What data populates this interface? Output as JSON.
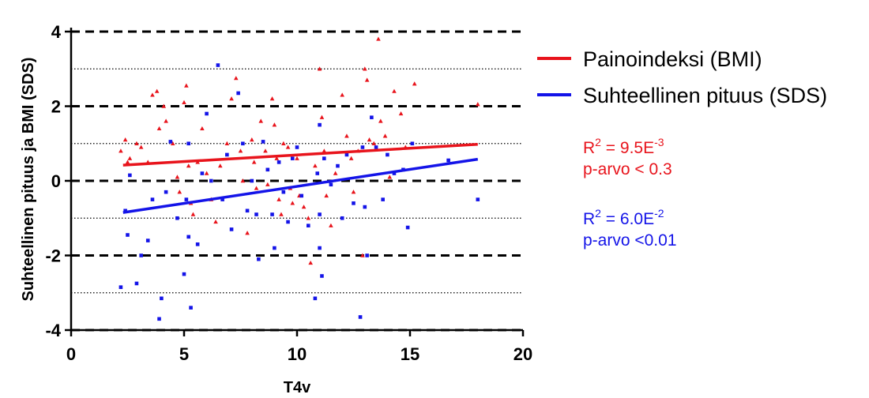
{
  "chart_data": {
    "type": "scatter",
    "title": "",
    "xlabel": "T4v",
    "ylabel": "Suhteellinen pituus ja BMI (SDS)",
    "xlim": [
      0,
      20
    ],
    "ylim": [
      -4,
      4
    ],
    "x_ticks": [
      "0",
      "5",
      "10",
      "15",
      "20"
    ],
    "y_ticks": [
      "-4",
      "-2",
      "0",
      "2",
      "4"
    ],
    "major_gridlines_y": [
      -4,
      -2,
      0,
      2,
      4
    ],
    "minor_gridlines_y": [
      -3,
      -1,
      1,
      3
    ],
    "legend_position": "top-right",
    "series": [
      {
        "name": "Painoindeksi (BMI)",
        "color": "#e8141c",
        "marker": "triangle",
        "trend": {
          "x": [
            2.3,
            18.0
          ],
          "y": [
            0.42,
            0.98
          ]
        },
        "points": [
          [
            2.2,
            0.8
          ],
          [
            2.4,
            1.1
          ],
          [
            2.5,
            0.5
          ],
          [
            2.6,
            0.6
          ],
          [
            2.9,
            1.0
          ],
          [
            3.1,
            0.9
          ],
          [
            3.4,
            0.5
          ],
          [
            3.6,
            2.3
          ],
          [
            3.8,
            2.4
          ],
          [
            3.9,
            1.4
          ],
          [
            4.1,
            2.0
          ],
          [
            4.2,
            1.6
          ],
          [
            4.5,
            1.0
          ],
          [
            4.7,
            0.1
          ],
          [
            4.8,
            -0.3
          ],
          [
            5.0,
            2.1
          ],
          [
            5.1,
            2.55
          ],
          [
            5.2,
            0.4
          ],
          [
            5.3,
            -0.6
          ],
          [
            5.4,
            -0.9
          ],
          [
            5.6,
            0.5
          ],
          [
            5.8,
            1.4
          ],
          [
            6.0,
            0.2
          ],
          [
            6.2,
            -0.5
          ],
          [
            6.4,
            -1.1
          ],
          [
            6.6,
            0.4
          ],
          [
            6.9,
            1.0
          ],
          [
            7.1,
            2.2
          ],
          [
            7.3,
            2.75
          ],
          [
            7.5,
            0.8
          ],
          [
            7.6,
            0.0
          ],
          [
            7.8,
            -1.4
          ],
          [
            8.0,
            1.1
          ],
          [
            8.1,
            0.5
          ],
          [
            8.2,
            -0.2
          ],
          [
            8.4,
            1.6
          ],
          [
            8.6,
            0.8
          ],
          [
            8.7,
            -0.1
          ],
          [
            8.9,
            2.2
          ],
          [
            9.0,
            1.5
          ],
          [
            9.1,
            0.6
          ],
          [
            9.2,
            -0.5
          ],
          [
            9.3,
            -0.9
          ],
          [
            9.4,
            1.0
          ],
          [
            9.6,
            0.9
          ],
          [
            9.7,
            -0.2
          ],
          [
            9.8,
            -0.6
          ],
          [
            10.0,
            0.6
          ],
          [
            10.1,
            -0.4
          ],
          [
            10.3,
            -0.7
          ],
          [
            10.5,
            -1.0
          ],
          [
            10.6,
            -2.2
          ],
          [
            10.8,
            0.4
          ],
          [
            11.0,
            3.0
          ],
          [
            11.1,
            1.7
          ],
          [
            11.2,
            0.8
          ],
          [
            11.3,
            -0.4
          ],
          [
            11.5,
            -1.2
          ],
          [
            11.7,
            0.2
          ],
          [
            12.0,
            2.3
          ],
          [
            12.2,
            1.2
          ],
          [
            12.4,
            0.6
          ],
          [
            12.5,
            -0.3
          ],
          [
            12.7,
            0.8
          ],
          [
            12.9,
            -2.0
          ],
          [
            13.0,
            3.0
          ],
          [
            13.1,
            2.7
          ],
          [
            13.2,
            1.1
          ],
          [
            13.4,
            1.0
          ],
          [
            13.6,
            3.8
          ],
          [
            13.7,
            1.6
          ],
          [
            13.9,
            1.2
          ],
          [
            14.1,
            0.1
          ],
          [
            14.3,
            2.4
          ],
          [
            14.6,
            1.8
          ],
          [
            14.8,
            0.9
          ],
          [
            15.2,
            2.6
          ],
          [
            18.0,
            2.05
          ]
        ]
      },
      {
        "name": "Suhteellinen pituus (SDS)",
        "color": "#1414e8",
        "marker": "square",
        "trend": {
          "x": [
            2.3,
            18.0
          ],
          "y": [
            -0.85,
            0.58
          ]
        },
        "points": [
          [
            2.2,
            -2.85
          ],
          [
            2.4,
            -0.8
          ],
          [
            2.5,
            -1.45
          ],
          [
            2.6,
            0.15
          ],
          [
            2.9,
            -2.75
          ],
          [
            3.1,
            -2.0
          ],
          [
            3.4,
            -1.6
          ],
          [
            3.6,
            -0.5
          ],
          [
            3.9,
            -3.7
          ],
          [
            4.0,
            -3.15
          ],
          [
            4.2,
            -0.3
          ],
          [
            4.4,
            1.05
          ],
          [
            4.7,
            -1.0
          ],
          [
            5.0,
            -2.5
          ],
          [
            5.1,
            -0.5
          ],
          [
            5.2,
            1.0
          ],
          [
            5.2,
            -1.5
          ],
          [
            5.3,
            -3.4
          ],
          [
            5.6,
            -1.7
          ],
          [
            5.8,
            0.2
          ],
          [
            6.0,
            1.8
          ],
          [
            6.2,
            0.0
          ],
          [
            6.5,
            3.1
          ],
          [
            6.7,
            -0.5
          ],
          [
            6.9,
            0.7
          ],
          [
            7.1,
            -1.3
          ],
          [
            7.4,
            2.35
          ],
          [
            7.6,
            1.0
          ],
          [
            7.8,
            -0.8
          ],
          [
            8.0,
            0.0
          ],
          [
            8.2,
            -0.9
          ],
          [
            8.3,
            -2.1
          ],
          [
            8.5,
            1.05
          ],
          [
            8.7,
            0.3
          ],
          [
            8.9,
            -0.9
          ],
          [
            9.0,
            -1.8
          ],
          [
            9.2,
            0.5
          ],
          [
            9.4,
            -0.3
          ],
          [
            9.6,
            -1.1
          ],
          [
            9.8,
            0.6
          ],
          [
            10.0,
            0.9
          ],
          [
            10.2,
            -0.4
          ],
          [
            10.5,
            -1.2
          ],
          [
            10.8,
            -3.15
          ],
          [
            10.9,
            0.2
          ],
          [
            11.0,
            1.5
          ],
          [
            11.0,
            -0.9
          ],
          [
            11.0,
            -1.8
          ],
          [
            11.1,
            -2.55
          ],
          [
            11.2,
            0.6
          ],
          [
            11.5,
            -0.1
          ],
          [
            11.8,
            0.4
          ],
          [
            12.0,
            -1.0
          ],
          [
            12.2,
            0.7
          ],
          [
            12.5,
            -0.6
          ],
          [
            12.8,
            -3.65
          ],
          [
            12.9,
            0.9
          ],
          [
            13.0,
            -0.7
          ],
          [
            13.1,
            -2.0
          ],
          [
            13.3,
            1.7
          ],
          [
            13.5,
            0.9
          ],
          [
            13.8,
            -0.5
          ],
          [
            14.0,
            0.7
          ],
          [
            14.3,
            0.2
          ],
          [
            14.7,
            0.3
          ],
          [
            14.9,
            -1.25
          ],
          [
            15.1,
            1.0
          ],
          [
            16.7,
            0.55
          ],
          [
            18.0,
            -0.5
          ]
        ]
      }
    ],
    "annotations": [
      {
        "id": "bmi",
        "color": "#e8141c",
        "r2_base": "R",
        "r2_exp": "2",
        "r2_mid": " = 9.5E",
        "r2_exp2": "-3",
        "p": "p-arvo < 0.3"
      },
      {
        "id": "sds",
        "color": "#1414e8",
        "r2_base": "R",
        "r2_exp": "2",
        "r2_mid": " = 6.0E",
        "r2_exp2": "-2",
        "p": "p-arvo <0.01"
      }
    ]
  }
}
